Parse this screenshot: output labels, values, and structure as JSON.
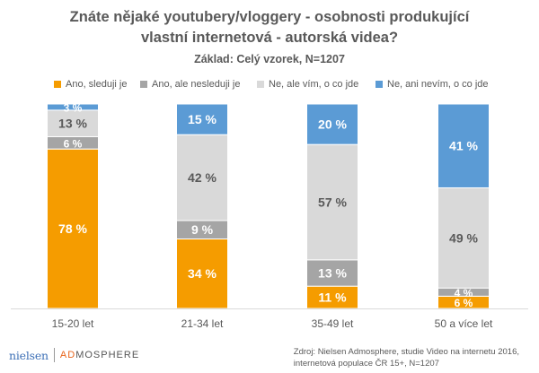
{
  "title_line1": "Znáte nějaké youtubery/vloggery - osobnosti produkující",
  "title_line2": "vlastní internetová - autorská videa?",
  "subtitle": "Základ: Celý vzorek, N=1207",
  "footer": {
    "logo_nielsen": "nielsen",
    "logo_admosphere_a": "AD",
    "logo_admosphere_b": "MOSPHERE",
    "source_line1": "Zdroj: Nielsen Admosphere, studie Video na internetu 2016,",
    "source_line2": "internetová populace ČR 15+, N=1207"
  },
  "chart_data": {
    "type": "bar",
    "stacked": true,
    "percent_stacked": true,
    "title": "Znáte nějaké youtubery/vloggery - osobnosti produkující vlastní internetová - autorská videa?",
    "subtitle": "Základ: Celý vzorek, N=1207",
    "categories": [
      "15-20 let",
      "21-34 let",
      "35-49 let",
      "50 a více let"
    ],
    "series": [
      {
        "name": "Ano, sleduji je",
        "color": "#f59c00",
        "values": [
          78,
          34,
          11,
          6
        ],
        "labels": [
          "78 %",
          "34 %",
          "11 %",
          "6 %"
        ]
      },
      {
        "name": "Ano, ale nesleduji je",
        "color": "#a5a5a5",
        "values": [
          6,
          9,
          13,
          4
        ],
        "labels": [
          "6 %",
          "9 %",
          "13 %",
          "4 %"
        ]
      },
      {
        "name": "Ne, ale vím, o co jde",
        "color": "#d9d9d9",
        "values": [
          13,
          42,
          57,
          49
        ],
        "labels": [
          "13 %",
          "42 %",
          "57 %",
          "49 %"
        ]
      },
      {
        "name": "Ne, ani nevím, o co jde",
        "color": "#5b9bd5",
        "values": [
          3,
          15,
          20,
          41
        ],
        "labels": [
          "3 %",
          "15 %",
          "20 %",
          "41 %"
        ]
      }
    ],
    "ylim": [
      0,
      100
    ],
    "legend_position": "top",
    "grid": false
  }
}
